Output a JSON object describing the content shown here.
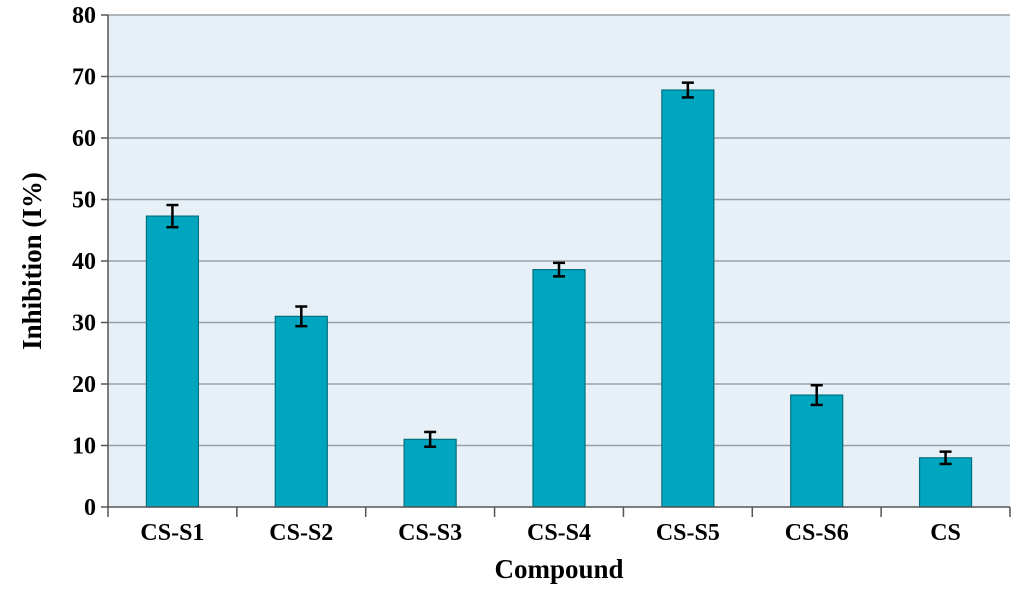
{
  "chart_data": {
    "type": "bar",
    "title": "",
    "xlabel": "Compound",
    "ylabel": "Inhibition (I%)",
    "categories": [
      "CS-S1",
      "CS-S2",
      "CS-S3",
      "CS-S4",
      "CS-S5",
      "CS-S6",
      "CS"
    ],
    "values": [
      47.3,
      31.0,
      11.0,
      38.6,
      67.8,
      18.2,
      8.0
    ],
    "error": [
      1.8,
      1.6,
      1.2,
      1.1,
      1.2,
      1.6,
      1.0
    ],
    "ylim": [
      0,
      80
    ],
    "yticks": [
      "0",
      "10",
      "20",
      "30",
      "40",
      "50",
      "60",
      "70",
      "80"
    ],
    "grid": true,
    "legend": "none",
    "colors": {
      "bar_fill": "#00a6c0",
      "bar_stroke": "#00707f",
      "plot_background": "#e6f0f6",
      "grid": "#9aa1a6",
      "axis": "#555555",
      "error_bar": "#000000"
    }
  }
}
